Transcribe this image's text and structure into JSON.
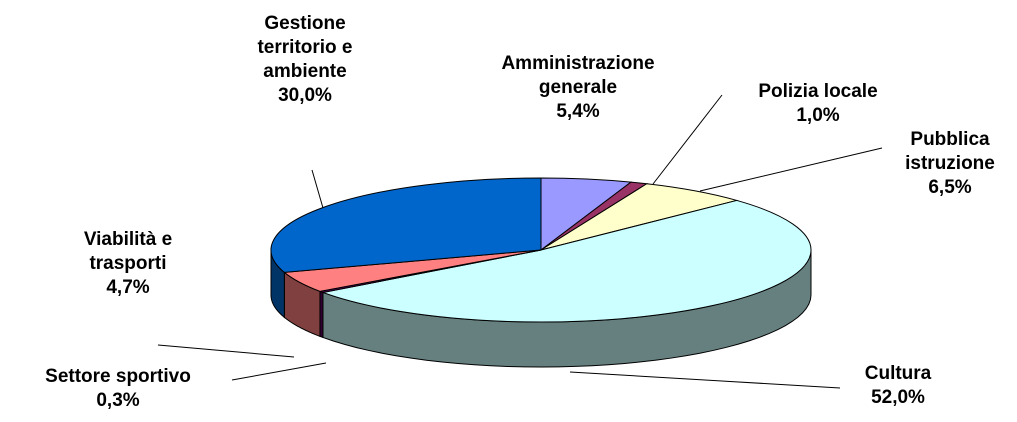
{
  "chart_data": {
    "type": "pie3d",
    "categories": [
      "Amministrazione generale",
      "Polizia locale",
      "Pubblica istruzione",
      "Cultura",
      "Settore sportivo",
      "Viabilità e trasporti",
      "Gestione territorio e ambiente"
    ],
    "values": [
      5.4,
      1.0,
      6.5,
      52.0,
      0.3,
      4.7,
      30.0
    ],
    "value_labels": [
      "5,4%",
      "1,0%",
      "6,5%",
      "52,0%",
      "0,3%",
      "4,7%",
      "30,0%"
    ],
    "colors": [
      "#9999ff",
      "#993366",
      "#ffffcc",
      "#ccffff",
      "#660066",
      "#ff8080",
      "#0066cc"
    ]
  }
}
